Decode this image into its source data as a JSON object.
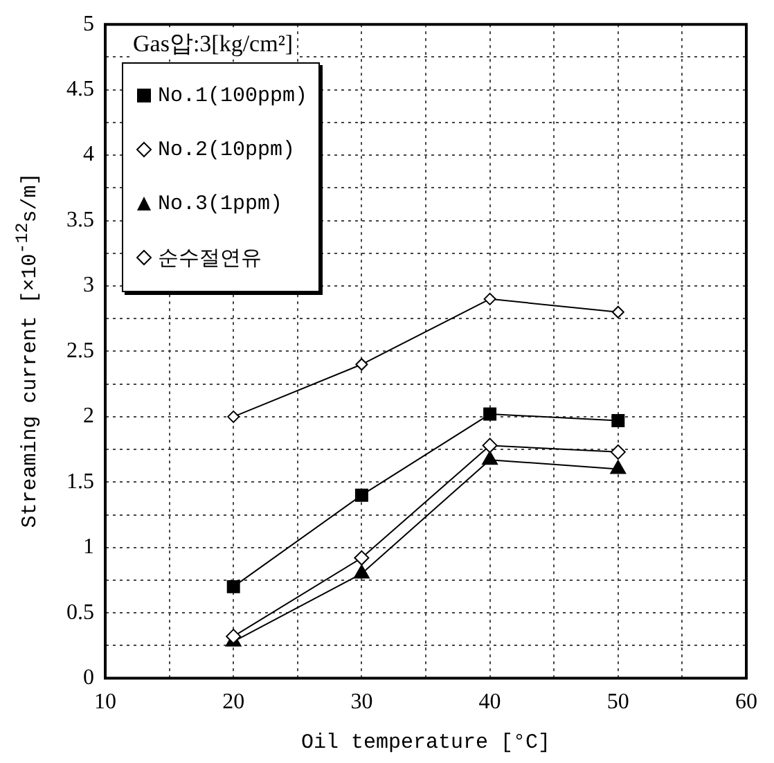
{
  "chart_data": {
    "type": "line",
    "xlabel": "Oil temperature [°C]",
    "ylabel": "Streaming current [×10$^{-12}$s/m]",
    "legend_title": "Gas압:3[kg/cm²]",
    "x": [
      20,
      30,
      40,
      50
    ],
    "series": [
      {
        "name": "No.1(100ppm)",
        "color": "#000000",
        "marker": "square",
        "values": [
          0.7,
          1.4,
          2.02,
          1.97
        ]
      },
      {
        "name": "No.2(10ppm)",
        "color": "#000000",
        "marker": "diamond",
        "values": [
          0.32,
          0.92,
          1.78,
          1.73
        ]
      },
      {
        "name": "No.3(1ppm)",
        "color": "#000000",
        "marker": "triangle",
        "values": [
          0.28,
          0.8,
          1.67,
          1.6
        ]
      },
      {
        "name": "순수절연유",
        "color": "#000000",
        "marker": "diamond",
        "values": [
          2.0,
          2.4,
          2.9,
          2.8
        ]
      }
    ],
    "xlim": [
      10,
      60
    ],
    "xticks": [
      10,
      {
        "value": 15,
        "label": null
      },
      20,
      {
        "value": 25,
        "label": null
      },
      30,
      {
        "value": 35,
        "label": null
      },
      40,
      {
        "value": 45,
        "label": null
      },
      50,
      {
        "value": 55,
        "label": null
      },
      60
    ],
    "ylim": [
      0,
      5
    ],
    "yticks": [
      0,
      {
        "value": 0.25,
        "label": null
      },
      0.5,
      {
        "value": 0.75,
        "label": null
      },
      1,
      {
        "value": 1.25,
        "label": null
      },
      1.5,
      {
        "value": 1.75,
        "label": null
      },
      2,
      {
        "value": 2.25,
        "label": null
      },
      2.5,
      {
        "value": 2.75,
        "label": null
      },
      3,
      {
        "value": 3.25,
        "label": null
      },
      3.5,
      {
        "value": 3.75,
        "label": null
      },
      4,
      {
        "value": 4.25,
        "label": null
      },
      4.5,
      {
        "value": 4.75,
        "label": null
      },
      5
    ],
    "grid": true,
    "legend": "top left",
    "line_style": "solid"
  }
}
